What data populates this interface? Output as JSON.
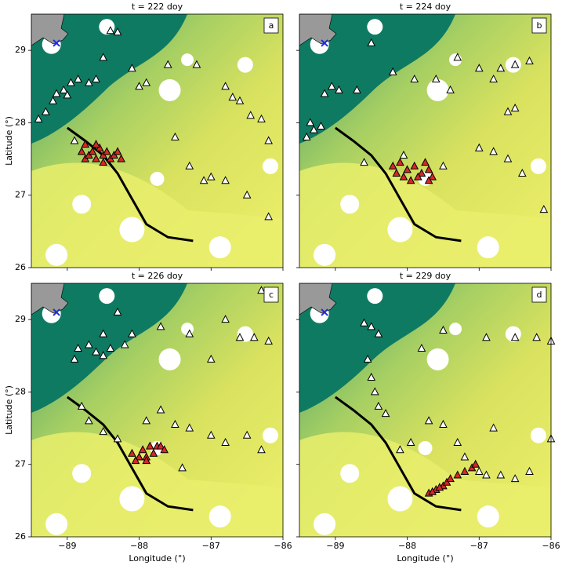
{
  "chart_data": [
    {
      "type": "scatter",
      "title": "t = 222 doy",
      "panel_label": "a",
      "ylabel": "Latitude (°)",
      "xlim": [
        -89.5,
        -86
      ],
      "ylim": [
        26,
        29.5
      ],
      "xticks": [
        -89,
        -88,
        -87,
        -86
      ],
      "yticks": [
        26,
        27,
        28,
        29
      ],
      "line": {
        "color": "#000000",
        "x": [
          -89,
          -88.75,
          -88.5,
          -88.3,
          -88.1,
          -87.9,
          -87.6,
          -87.25
        ],
        "y": [
          27.93,
          27.75,
          27.55,
          27.3,
          26.95,
          26.6,
          26.42,
          26.37
        ]
      },
      "series": [
        {
          "color": "#ffffff",
          "marker": "triangle",
          "x": [
            -89.4,
            -89.3,
            -89.2,
            -89.15,
            -89.05,
            -89.0,
            -88.95,
            -88.85,
            -88.7,
            -88.6,
            -88.5,
            -88.3,
            -88.4,
            -88.1,
            -88.0,
            -87.9,
            -87.6,
            -87.2,
            -86.8,
            -86.7,
            -86.6,
            -86.45,
            -86.3,
            -86.2,
            -87.5,
            -87.3,
            -87.0,
            -86.8,
            -86.5,
            -86.2,
            -88.9,
            -87.1
          ],
          "y": [
            28.05,
            28.15,
            28.3,
            28.4,
            28.45,
            28.38,
            28.55,
            28.6,
            28.55,
            28.6,
            28.9,
            29.25,
            29.27,
            28.75,
            28.5,
            28.55,
            28.8,
            28.8,
            28.5,
            28.35,
            28.3,
            28.1,
            28.05,
            27.75,
            27.8,
            27.4,
            27.25,
            27.2,
            27.0,
            26.7,
            27.75,
            27.2
          ]
        },
        {
          "color": "#d62728",
          "marker": "triangle",
          "x": [
            -88.8,
            -88.75,
            -88.7,
            -88.65,
            -88.6,
            -88.55,
            -88.5,
            -88.45,
            -88.4,
            -88.35,
            -88.3,
            -88.6,
            -88.75,
            -88.5,
            -88.25
          ],
          "y": [
            27.6,
            27.5,
            27.55,
            27.6,
            27.5,
            27.65,
            27.55,
            27.6,
            27.5,
            27.55,
            27.6,
            27.7,
            27.7,
            27.45,
            27.5
          ]
        },
        {
          "color": "#1f2bd6",
          "marker": "x",
          "x": [
            -89.15
          ],
          "y": [
            29.1
          ]
        }
      ]
    },
    {
      "type": "scatter",
      "title": "t = 224 doy",
      "panel_label": "b",
      "xlim": [
        -89.5,
        -86
      ],
      "ylim": [
        26,
        29.5
      ],
      "xticks": [
        -89,
        -88,
        -87,
        -86
      ],
      "yticks": [
        26,
        27,
        28,
        29
      ],
      "line": {
        "color": "#000000",
        "x": [
          -89,
          -88.75,
          -88.5,
          -88.3,
          -88.1,
          -87.9,
          -87.6,
          -87.25
        ],
        "y": [
          27.93,
          27.75,
          27.55,
          27.3,
          26.95,
          26.6,
          26.42,
          26.37
        ]
      },
      "series": [
        {
          "color": "#ffffff",
          "marker": "triangle",
          "x": [
            -89.4,
            -89.3,
            -89.2,
            -89.35,
            -89.15,
            -89.05,
            -88.95,
            -88.7,
            -88.5,
            -88.2,
            -87.9,
            -87.6,
            -87.4,
            -87.3,
            -87.0,
            -86.8,
            -86.7,
            -86.5,
            -86.3,
            -86.6,
            -86.5,
            -87.0,
            -86.8,
            -86.6,
            -86.4,
            -86.1,
            -87.5,
            -88.05,
            -88.6
          ],
          "y": [
            27.8,
            27.9,
            27.95,
            28.0,
            28.4,
            28.5,
            28.45,
            28.45,
            29.1,
            28.7,
            28.6,
            28.6,
            28.45,
            28.9,
            28.75,
            28.6,
            28.75,
            28.8,
            28.85,
            28.15,
            28.2,
            27.65,
            27.6,
            27.5,
            27.3,
            26.8,
            27.4,
            27.55,
            27.45
          ]
        },
        {
          "color": "#d62728",
          "marker": "triangle",
          "x": [
            -88.2,
            -88.1,
            -88.0,
            -87.9,
            -87.8,
            -87.75,
            -87.7,
            -87.65,
            -88.05,
            -87.95,
            -87.85,
            -87.7,
            -88.15
          ],
          "y": [
            27.4,
            27.45,
            27.35,
            27.4,
            27.3,
            27.45,
            27.35,
            27.25,
            27.25,
            27.2,
            27.25,
            27.2,
            27.3
          ]
        },
        {
          "color": "#1f2bd6",
          "marker": "x",
          "x": [
            -89.15
          ],
          "y": [
            29.1
          ]
        }
      ]
    },
    {
      "type": "scatter",
      "title": "t = 226 doy",
      "panel_label": "c",
      "ylabel": "Latitude (°)",
      "xlabel": "Longitude (°)",
      "xlim": [
        -89.5,
        -86
      ],
      "ylim": [
        26,
        29.5
      ],
      "xticks": [
        {
          "value": -89,
          "label": "−89"
        },
        {
          "value": -88,
          "label": "−88"
        },
        {
          "value": -87,
          "label": "−87"
        },
        {
          "value": -86,
          "label": "−86"
        }
      ],
      "yticks": [
        26,
        27,
        28,
        29
      ],
      "line": {
        "color": "#000000",
        "x": [
          -89,
          -88.75,
          -88.5,
          -88.3,
          -88.1,
          -87.9,
          -87.6,
          -87.25
        ],
        "y": [
          27.93,
          27.75,
          27.55,
          27.3,
          26.95,
          26.6,
          26.42,
          26.37
        ]
      },
      "series": [
        {
          "color": "#ffffff",
          "marker": "triangle",
          "x": [
            -88.9,
            -88.85,
            -88.7,
            -88.6,
            -88.5,
            -88.4,
            -88.2,
            -88.1,
            -88.5,
            -88.3,
            -87.7,
            -87.3,
            -87.0,
            -86.6,
            -86.4,
            -86.2,
            -86.3,
            -86.8,
            -88.8,
            -88.7,
            -88.5,
            -88.3,
            -87.9,
            -87.7,
            -87.5,
            -87.3,
            -87.0,
            -86.8,
            -86.5,
            -86.3,
            -87.4
          ],
          "y": [
            28.45,
            28.6,
            28.65,
            28.55,
            28.5,
            28.6,
            28.65,
            28.8,
            28.8,
            29.1,
            28.9,
            28.8,
            28.45,
            28.75,
            28.75,
            28.7,
            29.4,
            29.0,
            27.8,
            27.6,
            27.45,
            27.35,
            27.6,
            27.75,
            27.55,
            27.5,
            27.4,
            27.3,
            27.4,
            27.2,
            26.95
          ]
        },
        {
          "color": "#d62728",
          "marker": "triangle",
          "x": [
            -88.1,
            -88.0,
            -87.95,
            -87.9,
            -87.85,
            -87.8,
            -87.75,
            -87.7,
            -87.65,
            -88.05,
            -87.9
          ],
          "y": [
            27.15,
            27.1,
            27.2,
            27.1,
            27.25,
            27.15,
            27.25,
            27.25,
            27.2,
            27.05,
            27.05
          ]
        },
        {
          "color": "#1f2bd6",
          "marker": "x",
          "x": [
            -89.15
          ],
          "y": [
            29.1
          ]
        }
      ]
    },
    {
      "type": "scatter",
      "title": "t = 229 doy",
      "panel_label": "d",
      "xlabel": "Longitude (°)",
      "xlim": [
        -89.5,
        -86
      ],
      "ylim": [
        26,
        29.5
      ],
      "xticks": [
        {
          "value": -89,
          "label": "−89"
        },
        {
          "value": -88,
          "label": "−88"
        },
        {
          "value": -87,
          "label": "−87"
        },
        {
          "value": -86,
          "label": "−86"
        }
      ],
      "yticks": [
        26,
        27,
        28,
        29
      ],
      "line": {
        "color": "#000000",
        "x": [
          -89,
          -88.75,
          -88.5,
          -88.3,
          -88.1,
          -87.9,
          -87.6,
          -87.25
        ],
        "y": [
          27.93,
          27.75,
          27.55,
          27.3,
          26.95,
          26.6,
          26.42,
          26.37
        ]
      },
      "series": [
        {
          "color": "#ffffff",
          "marker": "triangle",
          "x": [
            -88.6,
            -88.5,
            -88.4,
            -88.55,
            -88.5,
            -88.45,
            -88.4,
            -88.3,
            -87.8,
            -87.5,
            -86.9,
            -86.5,
            -86.2,
            -86.0,
            -87.7,
            -87.5,
            -87.3,
            -87.2,
            -87.0,
            -86.9,
            -86.7,
            -86.5,
            -86.3,
            -86.0,
            -86.8,
            -88.1,
            -87.95
          ],
          "y": [
            28.95,
            28.9,
            28.8,
            28.45,
            28.2,
            28.0,
            27.8,
            27.7,
            28.6,
            28.85,
            28.75,
            28.75,
            28.75,
            28.7,
            27.6,
            27.55,
            27.3,
            27.1,
            26.9,
            26.85,
            26.85,
            26.8,
            26.9,
            27.35,
            27.5,
            27.2,
            27.3
          ]
        },
        {
          "color": "#d62728",
          "marker": "triangle",
          "x": [
            -87.7,
            -87.6,
            -87.5,
            -87.45,
            -87.4,
            -87.3,
            -87.2,
            -87.1,
            -87.05,
            -87.65,
            -87.55
          ],
          "y": [
            26.6,
            26.65,
            26.7,
            26.75,
            26.8,
            26.85,
            26.9,
            26.95,
            27.0,
            26.62,
            26.68
          ]
        },
        {
          "color": "#1f2bd6",
          "marker": "x",
          "x": [
            -89.15
          ],
          "y": [
            29.1
          ]
        }
      ]
    }
  ]
}
